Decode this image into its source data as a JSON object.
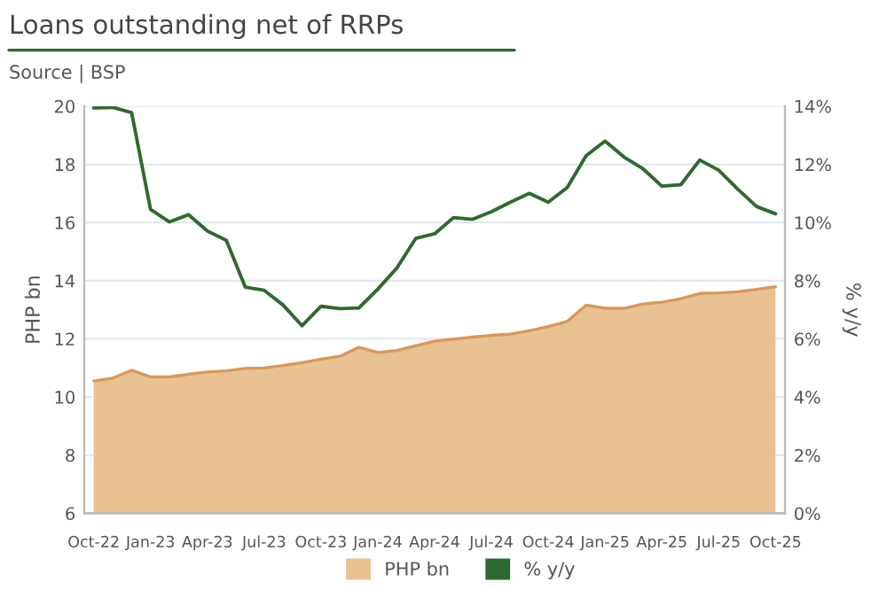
{
  "chart_data": {
    "type": "area",
    "title": "Loans outstanding net of RRPs",
    "subtitle": "Source | BSP",
    "ylabel": "PHP bn",
    "y2label": "% y/y",
    "categories": [
      "Oct-22",
      null,
      null,
      "Jan-23",
      null,
      null,
      "Apr-23",
      null,
      null,
      "Jul-23",
      null,
      null,
      "Oct-23",
      null,
      null,
      "Jan-24",
      null,
      null,
      "Apr-24",
      null,
      null,
      "Jul-24",
      null,
      null,
      "Oct-24",
      null,
      null,
      "Jan-25",
      null,
      null,
      "Apr-25",
      null,
      null,
      "Jul-25",
      null,
      null,
      "Oct-25"
    ],
    "series": [
      {
        "name": "PHP bn",
        "color": "#e9c293",
        "values": [
          10.55,
          10.65,
          10.92,
          10.69,
          10.69,
          10.78,
          10.86,
          10.9,
          10.98,
          11.0,
          11.08,
          11.18,
          11.3,
          11.4,
          11.71,
          11.53,
          11.6,
          11.76,
          11.92,
          11.99,
          12.06,
          12.12,
          12.16,
          12.28,
          12.42,
          12.6,
          13.16,
          13.05,
          13.05,
          13.2,
          13.26,
          13.38,
          13.56,
          13.58,
          13.62,
          13.7,
          13.79
        ]
      },
      {
        "name": "% y/y",
        "type": "line",
        "axis": "y2",
        "color": "#2d6a2d",
        "values": [
          13.94,
          13.96,
          13.78,
          10.45,
          10.02,
          10.27,
          9.71,
          9.39,
          7.78,
          7.67,
          7.16,
          6.45,
          7.12,
          7.04,
          7.06,
          7.71,
          8.43,
          9.45,
          9.61,
          10.17,
          10.11,
          10.37,
          10.7,
          11.0,
          10.7,
          11.2,
          12.3,
          12.8,
          12.25,
          11.85,
          11.25,
          11.3,
          12.15,
          11.8,
          11.15,
          10.55,
          10.3
        ]
      }
    ],
    "ylim": [
      6,
      20
    ],
    "yticks": [
      6,
      8,
      10,
      12,
      14,
      16,
      18,
      20
    ],
    "y2lim": [
      0,
      14
    ],
    "y2ticks": [
      {
        "value": 0,
        "label": "0%"
      },
      {
        "value": 2,
        "label": "2%"
      },
      {
        "value": 4,
        "label": "4%"
      },
      {
        "value": 6,
        "label": "6%"
      },
      {
        "value": 8,
        "label": "8%"
      },
      {
        "value": 10,
        "label": "10%"
      },
      {
        "value": 12,
        "label": "12%"
      },
      {
        "value": 14,
        "label": "14%"
      }
    ],
    "grid": "y",
    "legend": "bottom"
  }
}
